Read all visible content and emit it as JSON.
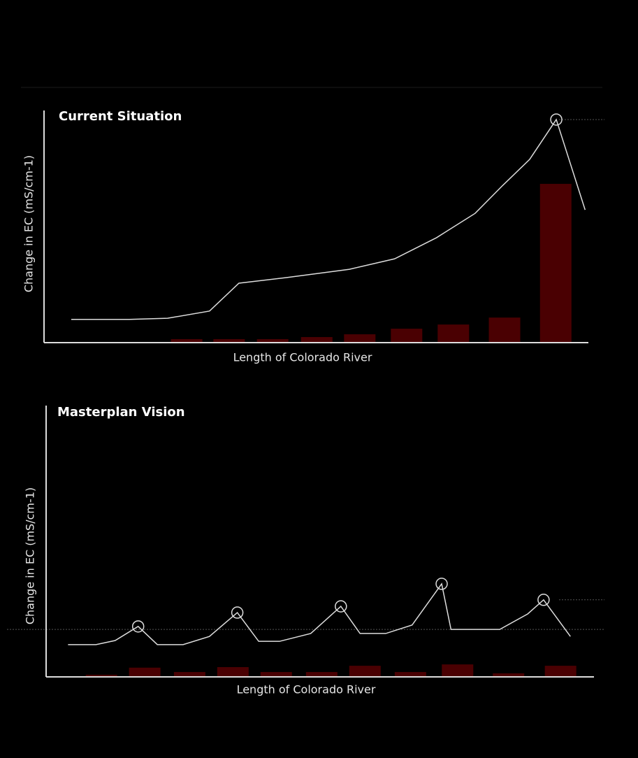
{
  "chart_data": [
    {
      "type": "combo",
      "title": "Current Situation",
      "ylabel": "Change in EC (mS/cm-1)",
      "xlabel": "Length of Colorado River",
      "xlim": [
        0,
        100
      ],
      "ylim": [
        0,
        100
      ],
      "series": [
        {
          "kind": "bar",
          "color": "#4a0002",
          "x": [
            10.1,
            18.2,
            26.2,
            34,
            42,
            50.1,
            58,
            66.6,
            75.2,
            84.6,
            94
          ],
          "values": [
            0.3,
            0.3,
            1.5,
            1.5,
            1.5,
            2.4,
            3.6,
            6,
            7.8,
            10.8,
            68.4
          ]
        },
        {
          "kind": "line",
          "color": "#dddddd",
          "x": [
            5,
            15.7,
            22.7,
            30.4,
            35.8,
            44.5,
            56.1,
            64.4,
            72.1,
            79.2,
            84.3,
            89.2,
            94.1,
            99.4
          ],
          "values": [
            10,
            10,
            10.5,
            13.6,
            25.6,
            28,
            31.6,
            36.1,
            45.2,
            55.7,
            67.8,
            78.9,
            96.1,
            57.2
          ],
          "highlight_points": [
            12
          ]
        }
      ],
      "ref_lines": [
        {
          "value": 96.1,
          "span": "right"
        }
      ]
    },
    {
      "type": "combo",
      "title": "Masterplan Vision",
      "ylabel": "Change in EC (mS/cm-1)",
      "xlabel": "Length of Colorado River",
      "xlim": [
        0,
        100
      ],
      "ylim": [
        0,
        100
      ],
      "series": [
        {
          "kind": "bar",
          "color": "#4a0002",
          "x": [
            10.1,
            18,
            26.2,
            34.1,
            42,
            50.3,
            58.2,
            66.5,
            75.1,
            84.4,
            93.9
          ],
          "values": [
            0.8,
            3.4,
            1.8,
            3.6,
            1.8,
            1.8,
            4.1,
            1.8,
            4.6,
            1.3,
            4.1
          ]
        },
        {
          "kind": "line",
          "color": "#dddddd",
          "x": [
            4,
            9.1,
            12.6,
            16.8,
            20.3,
            25,
            29.8,
            34.9,
            38.8,
            42.6,
            48.3,
            53.8,
            57.3,
            62,
            66.8,
            72.2,
            73.9,
            82.8,
            87.9,
            90.8,
            95.7
          ],
          "values": [
            11.9,
            11.9,
            13.4,
            18.6,
            11.9,
            11.9,
            14.9,
            23.7,
            13.1,
            13.1,
            16,
            26,
            16,
            16,
            19.1,
            34.3,
            17.5,
            17.5,
            23.2,
            28.4,
            14.9
          ],
          "highlight_points": [
            3,
            7,
            11,
            15,
            19
          ]
        }
      ],
      "ref_lines": [
        {
          "value": 17.5,
          "span": "full"
        },
        {
          "value": 28.4,
          "span": "right"
        }
      ]
    }
  ]
}
